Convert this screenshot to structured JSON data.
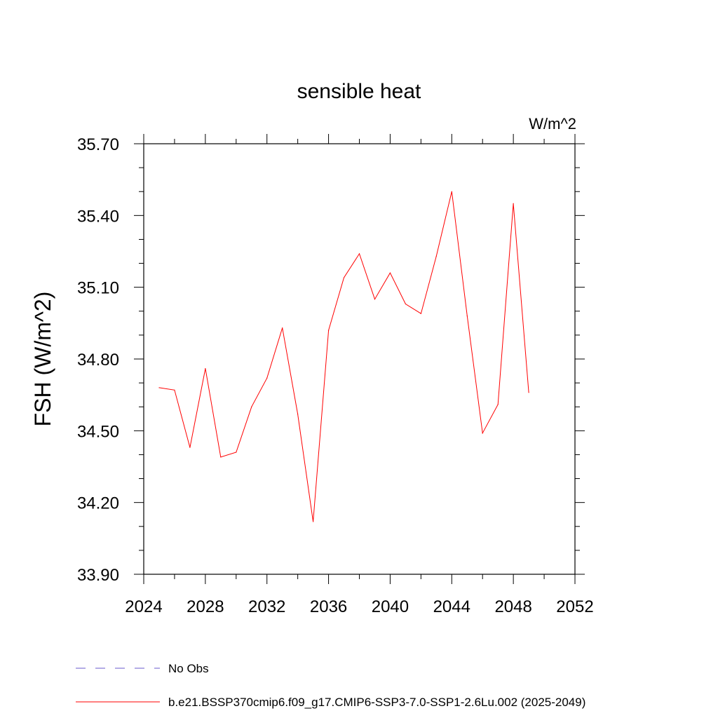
{
  "chart_data": {
    "type": "line",
    "title": "sensible heat",
    "units_label": "W/m^2",
    "ylabel": "FSH  (W/m^2)",
    "xlabel": "",
    "xlim": [
      2024,
      2052
    ],
    "ylim": [
      33.9,
      35.7
    ],
    "x_ticks": [
      2024,
      2028,
      2032,
      2036,
      2040,
      2044,
      2048,
      2052
    ],
    "x_tick_labels": [
      "2024",
      "2028",
      "2032",
      "2036",
      "2040",
      "2044",
      "2048",
      "2052"
    ],
    "y_ticks": [
      33.9,
      34.2,
      34.5,
      34.8,
      35.1,
      35.4,
      35.7
    ],
    "y_tick_labels": [
      "33.90",
      "34.20",
      "34.50",
      "34.80",
      "35.10",
      "35.40",
      "35.70"
    ],
    "grid": false,
    "legend_position": "bottom",
    "series": [
      {
        "name": "b.e21.BSSP370cmip6.f09_g17.CMIP6-SSP3-7.0-SSP1-2.6Lu.002 (2025-2049)",
        "color": "#ff0000",
        "x": [
          2025,
          2026,
          2027,
          2028,
          2029,
          2030,
          2031,
          2032,
          2033,
          2034,
          2035,
          2036,
          2037,
          2038,
          2039,
          2040,
          2041,
          2042,
          2043,
          2044,
          2045,
          2046,
          2047,
          2048,
          2049
        ],
        "y": [
          34.68,
          34.67,
          34.43,
          34.76,
          34.39,
          34.41,
          34.6,
          34.72,
          34.93,
          34.57,
          34.12,
          34.92,
          35.14,
          35.24,
          35.05,
          35.16,
          35.03,
          34.99,
          35.23,
          35.5,
          34.98,
          34.49,
          34.61,
          35.45,
          34.66
        ]
      }
    ],
    "legend": [
      {
        "label": "No Obs",
        "color": "#6a5acd",
        "style": "dashed"
      },
      {
        "label": "b.e21.BSSP370cmip6.f09_g17.CMIP6-SSP3-7.0-SSP1-2.6Lu.002 (2025-2049)",
        "color": "#ff0000",
        "style": "solid"
      }
    ]
  }
}
